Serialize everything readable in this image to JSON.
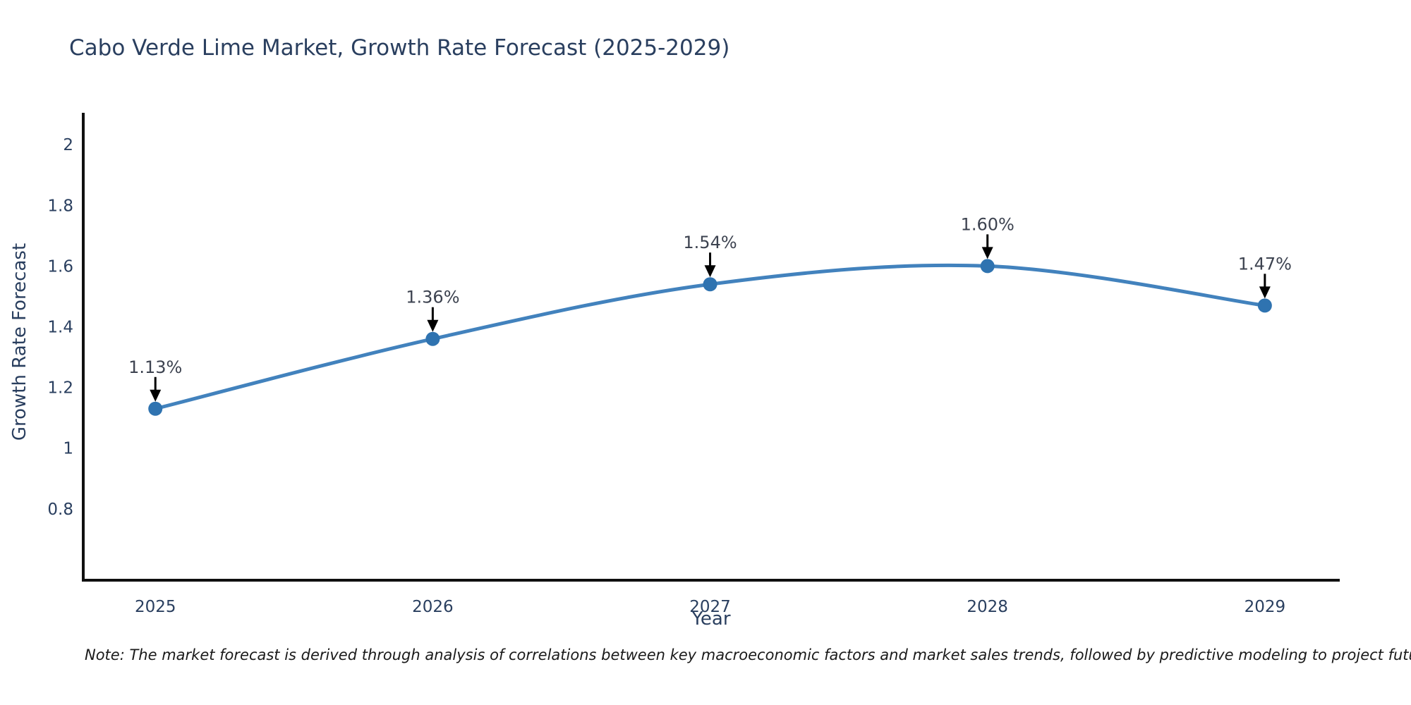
{
  "chart_data": {
    "type": "line",
    "title": "Cabo Verde Lime Market, Growth Rate Forecast (2025-2029)",
    "xlabel": "Year",
    "ylabel": "Growth Rate Forecast",
    "x": [
      2025,
      2026,
      2027,
      2028,
      2029
    ],
    "x_tick_labels": [
      "2025",
      "2026",
      "2027",
      "2028",
      "2029"
    ],
    "values": [
      1.13,
      1.36,
      1.54,
      1.6,
      1.47
    ],
    "point_labels": [
      "1.13%",
      "1.36%",
      "1.54%",
      "1.60%",
      "1.47%"
    ],
    "y_ticks": [
      2,
      1.8,
      1.6,
      1.4,
      1.2,
      1,
      0.8
    ],
    "y_tick_labels": [
      "2",
      "1.8",
      "1.6",
      "1.4",
      "1.2",
      "1",
      "0.8"
    ],
    "xlim": [
      2024.74,
      2029.27
    ],
    "ylim": [
      0.565,
      2.105
    ],
    "line_shape": "spline",
    "grid": false,
    "legend": false,
    "marker": "circle",
    "annotations_have_arrows": true,
    "colors": {
      "line": "#4282bd",
      "marker": "#2f73b0",
      "axis": "#101010",
      "tick_text": "#2a3f5f",
      "title_text": "#2a3f5f",
      "annotation_text": "#3d4350",
      "arrow": "#000000",
      "background": "#ffffff"
    }
  },
  "note": "Note: The market forecast is derived through analysis of correlations between key macroeconomic factors and market sales trends, followed by predictive modeling to project future sales"
}
